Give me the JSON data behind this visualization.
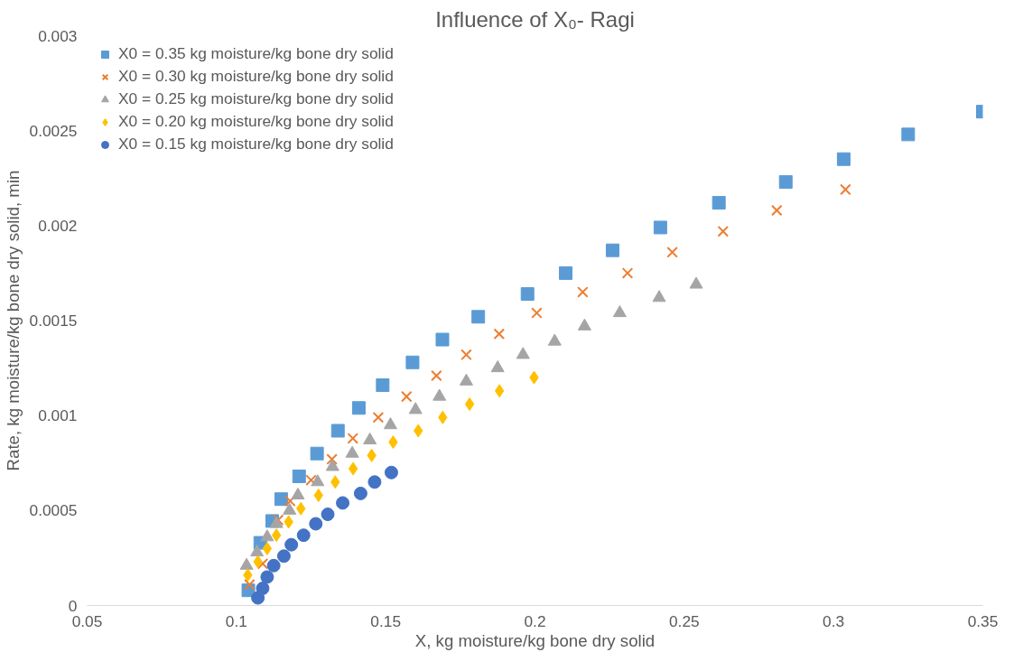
{
  "chart_data": {
    "type": "scatter",
    "title": "Influence of X₀- Ragi",
    "xlabel": "X, kg moisture/kg bone dry solid",
    "ylabel": "Rate, kg moisture/kg bone dry solid, min",
    "xlim": [
      0.05,
      0.35
    ],
    "xticks": [
      0.05,
      0.1,
      0.15,
      0.2,
      0.25,
      0.3,
      0.35
    ],
    "ylim": [
      0,
      0.003
    ],
    "yticks": [
      0,
      0.0005,
      0.001,
      0.0015,
      0.002,
      0.0025,
      0.003
    ],
    "grid": false,
    "legend": "top left",
    "series": [
      {
        "name": "X0 = 0.35 kg moisture/kg bone dry solid",
        "color": "#5b9bd5",
        "marker": "square",
        "x": [
          0.104,
          0.108,
          0.112,
          0.115,
          0.121,
          0.127,
          0.134,
          0.141,
          0.149,
          0.159,
          0.169,
          0.181,
          0.1975,
          0.2103,
          0.226,
          0.242,
          0.2616,
          0.284,
          0.3034,
          0.325,
          0.35
        ],
        "values": [
          8e-05,
          0.00033,
          0.000445,
          0.00056,
          0.00068,
          0.0008,
          0.00092,
          0.00104,
          0.00116,
          0.00128,
          0.0014,
          0.00152,
          0.00164,
          0.00175,
          0.00187,
          0.00199,
          0.00212,
          0.00223,
          0.00235,
          0.00248,
          0.0026
        ]
      },
      {
        "name": "X0 = 0.30 kg moisture/kg bone dry solid",
        "color": "#ed7d31",
        "marker": "cross",
        "x": [
          0.1044,
          0.1088,
          0.114,
          0.118,
          0.125,
          0.132,
          0.139,
          0.1475,
          0.157,
          0.167,
          0.177,
          0.188,
          0.2006,
          0.216,
          0.231,
          0.246,
          0.263,
          0.281,
          0.304
        ],
        "values": [
          0.00011,
          0.00022,
          0.00045,
          0.00055,
          0.00066,
          0.00077,
          0.00088,
          0.00099,
          0.0011,
          0.00121,
          0.00132,
          0.00143,
          0.00154,
          0.00165,
          0.00175,
          0.00186,
          0.00197,
          0.00208,
          0.00219
        ]
      },
      {
        "name": "X0 = 0.25 kg moisture/kg bone dry solid",
        "color": "#a5a5a5",
        "marker": "triangle",
        "x": [
          0.1034,
          0.1069,
          0.1103,
          0.1134,
          0.1178,
          0.1206,
          0.1272,
          0.1322,
          0.1388,
          0.1447,
          0.1516,
          0.16,
          0.168,
          0.177,
          0.1875,
          0.196,
          0.2066,
          0.2166,
          0.2284,
          0.2416,
          0.254
        ],
        "values": [
          0.00021,
          0.00028,
          0.00036,
          0.00043,
          0.0005,
          0.00058,
          0.00065,
          0.00073,
          0.0008,
          0.00087,
          0.00095,
          0.00103,
          0.0011,
          0.00118,
          0.00125,
          0.00132,
          0.00139,
          0.00147,
          0.00154,
          0.00162,
          0.00169
        ]
      },
      {
        "name": "X0 = 0.20 kg moisture/kg bone dry solid",
        "color": "#ffc000",
        "marker": "diamond",
        "x": [
          0.1038,
          0.1072,
          0.1103,
          0.1134,
          0.1175,
          0.1216,
          0.1275,
          0.1331,
          0.1391,
          0.1453,
          0.1525,
          0.1609,
          0.1691,
          0.1781,
          0.1881,
          0.1997
        ],
        "values": [
          0.00016,
          0.00023,
          0.0003,
          0.00037,
          0.00044,
          0.00051,
          0.00058,
          0.00065,
          0.00072,
          0.00079,
          0.00086,
          0.00092,
          0.00099,
          0.00106,
          0.00113,
          0.0012
        ]
      },
      {
        "name": "X0 = 0.15 kg moisture/kg bone dry solid",
        "color": "#4472c4",
        "marker": "circle",
        "x": [
          0.1072,
          0.1088,
          0.1103,
          0.1125,
          0.1159,
          0.1184,
          0.1225,
          0.1266,
          0.1306,
          0.1356,
          0.1416,
          0.1463,
          0.1519
        ],
        "values": [
          4e-05,
          9e-05,
          0.00015,
          0.00021,
          0.00026,
          0.00032,
          0.00037,
          0.00043,
          0.00048,
          0.00054,
          0.00059,
          0.00065,
          0.0007
        ]
      }
    ]
  }
}
